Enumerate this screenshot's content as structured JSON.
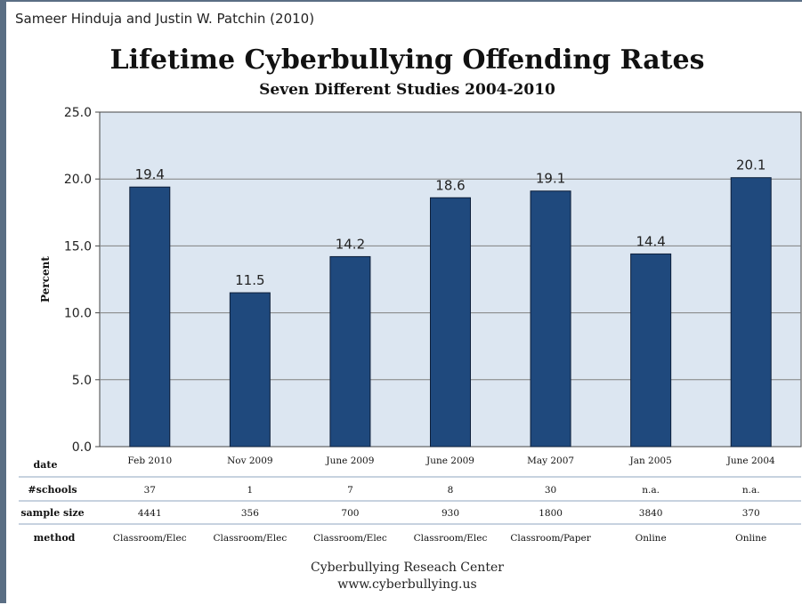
{
  "credit": "Sameer Hinduja and Justin W. Patchin (2010)",
  "title": "Lifetime Cyberbullying Offending Rates",
  "subtitle": "Seven Different Studies 2004-2010",
  "footer": {
    "line1": "Cyberbullying Reseach Center",
    "line2": "www.cyberbullying.us"
  },
  "colors": {
    "bar": "#1f497d",
    "plot_background": "#dce6f1",
    "gridline": "#808080"
  },
  "chart_data": {
    "type": "bar",
    "title": "Lifetime Cyberbullying Offending Rates",
    "subtitle": "Seven Different Studies 2004-2010",
    "ylabel": "Percent",
    "xlabel": "",
    "ylim": [
      0,
      25
    ],
    "yticks": [
      "0.0",
      "5.0",
      "10.0",
      "15.0",
      "20.0",
      "25.0"
    ],
    "grid": true,
    "legend": "none",
    "categories": [
      "Feb 2010",
      "Nov 2009",
      "June 2009",
      "June 2009",
      "May 2007",
      "Jan 2005",
      "June 2004"
    ],
    "values": [
      19.4,
      11.5,
      14.2,
      18.6,
      19.1,
      14.4,
      20.1
    ],
    "value_labels": [
      "19.4",
      "11.5",
      "14.2",
      "18.6",
      "19.1",
      "14.4",
      "20.1"
    ],
    "table": {
      "row_labels": [
        "date",
        "#schools",
        "sample size",
        "method"
      ],
      "rows": [
        [
          "Feb 2010",
          "Nov 2009",
          "June 2009",
          "June 2009",
          "May 2007",
          "Jan 2005",
          "June 2004"
        ],
        [
          "37",
          "1",
          "7",
          "8",
          "30",
          "n.a.",
          "n.a."
        ],
        [
          "4441",
          "356",
          "700",
          "930",
          "1800",
          "3840",
          "370"
        ],
        [
          "Classroom/Elec",
          "Classroom/Elec",
          "Classroom/Elec",
          "Classroom/Elec",
          "Classroom/Paper",
          "Online",
          "Online"
        ]
      ]
    }
  }
}
